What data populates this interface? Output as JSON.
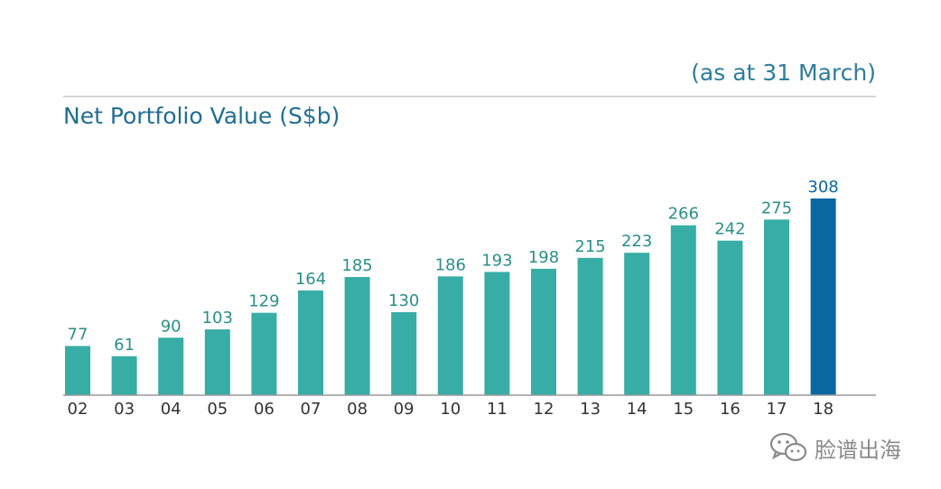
{
  "header": {
    "note": "(as at 31 March)",
    "title": "Net Portfolio Value (S$b)"
  },
  "watermark": {
    "text": "脸谱出海",
    "icon": "wechat-icon"
  },
  "colors": {
    "bar": "#37ada6",
    "highlight": "#0b67a0",
    "label": "#2a8f8a",
    "axis": "#999999",
    "tick": "#333333",
    "rule": "#c8c8c8"
  },
  "chart_data": {
    "type": "bar",
    "title": "Net Portfolio Value (S$b)",
    "subtitle": "(as at 31 March)",
    "categories": [
      "02",
      "03",
      "04",
      "05",
      "06",
      "07",
      "08",
      "09",
      "10",
      "11",
      "12",
      "13",
      "14",
      "15",
      "16",
      "17",
      "18"
    ],
    "values": [
      77,
      61,
      90,
      103,
      129,
      164,
      185,
      130,
      186,
      193,
      198,
      215,
      223,
      266,
      242,
      275,
      308
    ],
    "highlight_category": "18",
    "xlabel": "",
    "ylabel": "",
    "ylim": [
      0,
      308
    ],
    "grid": false,
    "data_labels": true
  }
}
